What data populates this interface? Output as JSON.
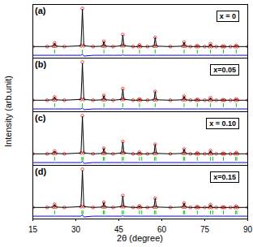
{
  "chart_data": {
    "type": "line",
    "x_label": "2θ (degree)",
    "y_label": "Intensity (arb.unit)",
    "xlim": [
      15,
      90
    ],
    "xticks": [
      15,
      30,
      45,
      60,
      75,
      90
    ],
    "tick_labels": "x",
    "panels": [
      {
        "label": "(a)",
        "annotation": "x = 0",
        "ylim": [
          -25,
          110
        ],
        "x": [
          15,
          20,
          22.2,
          22.6,
          23.0,
          26,
          31.8,
          32.3,
          32.8,
          36,
          39.4,
          39.8,
          40.2,
          43,
          46.0,
          46.4,
          46.8,
          50,
          51.8,
          52.2,
          52.6,
          55,
          57.3,
          57.7,
          58.1,
          63,
          67.4,
          67.8,
          68.2,
          70,
          72.0,
          72.4,
          72.8,
          75,
          76.6,
          77.0,
          77.4,
          79,
          81.1,
          81.5,
          81.9,
          84,
          85.6,
          86.0,
          86.4,
          90
        ],
        "series": [
          {
            "type": "scatter",
            "marker": "circle",
            "color": "#e8231f",
            "values": [
              4,
              4,
              5,
              13,
              5,
              4,
              6,
              100,
              6,
              4,
              5,
              17,
              5,
              4,
              6,
              34,
              6,
              4,
              4,
              8,
              4,
              4,
              5,
              27,
              5,
              4,
              5,
              15,
              5,
              4,
              4,
              6,
              4,
              4,
              4,
              11,
              4,
              4,
              4,
              5,
              4,
              4,
              4,
              7,
              4,
              4
            ]
          },
          {
            "type": "line",
            "color": "#000000",
            "values": [
              4,
              4,
              5,
              13,
              5,
              4,
              6,
              98,
              6,
              4,
              5,
              17,
              5,
              4,
              6,
              33,
              6,
              4,
              4,
              8,
              4,
              4,
              5,
              27,
              5,
              4,
              5,
              15,
              5,
              4,
              4,
              6,
              4,
              4,
              4,
              11,
              4,
              4,
              4,
              5,
              4,
              4,
              4,
              7,
              4,
              4
            ]
          },
          {
            "type": "line",
            "color": "#0000ff",
            "values": [
              -18,
              -18,
              -18,
              -18,
              -18,
              -18,
              -18,
              -15,
              -20,
              -18,
              -18,
              -18,
              -18,
              -18,
              -18,
              -17,
              -18,
              -18,
              -18,
              -18,
              -18,
              -18,
              -18,
              -18,
              -18,
              -18,
              -18,
              -18,
              -18,
              -18,
              -18,
              -18,
              -18,
              -18,
              -18,
              -18,
              -18,
              -18,
              -18,
              -18,
              -18,
              -18,
              -18,
              -18,
              -18,
              -18
            ]
          },
          {
            "type": "tick",
            "color": "#00cc00",
            "positions": [
              22.6,
              32.3,
              39.8,
              46.4,
              52.2,
              57.7,
              67.8,
              72.4,
              77.0,
              81.5,
              86.0
            ]
          }
        ]
      },
      {
        "label": "(b)",
        "annotation": "x=0.05",
        "ylim": [
          -25,
          110
        ],
        "x": [
          15,
          20,
          22.2,
          22.6,
          23.0,
          26,
          31.8,
          32.3,
          32.8,
          36,
          39.4,
          39.8,
          40.2,
          43,
          46.0,
          46.4,
          46.8,
          50,
          51.8,
          52.2,
          52.6,
          55,
          57.3,
          57.7,
          58.1,
          63,
          67.4,
          67.8,
          68.2,
          70,
          72.0,
          72.4,
          72.8,
          75,
          76.6,
          77.0,
          77.4,
          79,
          81.1,
          81.5,
          81.9,
          84,
          85.6,
          86.0,
          86.4,
          90
        ],
        "series": [
          {
            "type": "scatter",
            "marker": "circle",
            "color": "#e8231f",
            "values": [
              4,
              4,
              5,
              12,
              5,
              4,
              6,
              100,
              6,
              4,
              5,
              16,
              5,
              4,
              6,
              33,
              6,
              4,
              4,
              7,
              4,
              4,
              5,
              26,
              5,
              4,
              5,
              14,
              5,
              4,
              4,
              6,
              4,
              4,
              4,
              10,
              4,
              4,
              4,
              5,
              4,
              4,
              4,
              7,
              4,
              4
            ]
          },
          {
            "type": "line",
            "color": "#000000",
            "values": [
              4,
              4,
              5,
              12,
              5,
              4,
              6,
              97,
              6,
              4,
              5,
              16,
              5,
              4,
              6,
              32,
              6,
              4,
              4,
              7,
              4,
              4,
              5,
              26,
              5,
              4,
              5,
              14,
              5,
              4,
              4,
              6,
              4,
              4,
              4,
              10,
              4,
              4,
              4,
              5,
              4,
              4,
              4,
              7,
              4,
              4
            ]
          },
          {
            "type": "line",
            "color": "#0000ff",
            "values": [
              -18,
              -18,
              -18,
              -18,
              -18,
              -18,
              -18,
              -15,
              -20,
              -18,
              -18,
              -18,
              -18,
              -18,
              -18,
              -17,
              -18,
              -18,
              -18,
              -18,
              -18,
              -18,
              -18,
              -18,
              -18,
              -18,
              -18,
              -18,
              -18,
              -18,
              -18,
              -18,
              -18,
              -18,
              -18,
              -18,
              -18,
              -18,
              -18,
              -18,
              -18,
              -18,
              -18,
              -18,
              -18,
              -18
            ]
          },
          {
            "type": "tick",
            "color": "#00cc00",
            "positions": [
              22.6,
              32.3,
              39.8,
              46.4,
              52.2,
              57.7,
              67.8,
              72.4,
              77.0,
              81.5,
              86.0
            ]
          }
        ]
      },
      {
        "label": "(c)",
        "annotation": "x = 0.10",
        "ylim": [
          -25,
          110
        ],
        "x": [
          15,
          20,
          22.2,
          22.6,
          23.0,
          26,
          31.8,
          32.3,
          32.8,
          36,
          39.4,
          39.8,
          40.2,
          43,
          46.0,
          46.4,
          46.8,
          50,
          51.8,
          52.2,
          52.6,
          55,
          57.3,
          57.7,
          58.1,
          63,
          67.4,
          67.8,
          68.2,
          70,
          72.0,
          72.4,
          72.8,
          75,
          76.6,
          77.0,
          77.4,
          79,
          81.1,
          81.5,
          81.9,
          84,
          85.6,
          86.0,
          86.4,
          90
        ],
        "series": [
          {
            "type": "scatter",
            "marker": "circle",
            "color": "#e8231f",
            "values": [
              4,
              4,
              5,
              11,
              5,
              4,
              6,
              100,
              6,
              4,
              5,
              18,
              5,
              4,
              6,
              35,
              6,
              4,
              4,
              8,
              4,
              4,
              5,
              28,
              5,
              4,
              5,
              16,
              5,
              4,
              4,
              6,
              4,
              4,
              4,
              12,
              4,
              4,
              4,
              5,
              4,
              4,
              4,
              7,
              4,
              4
            ]
          },
          {
            "type": "line",
            "color": "#000000",
            "values": [
              4,
              4,
              5,
              11,
              5,
              4,
              6,
              98,
              6,
              4,
              5,
              18,
              5,
              4,
              6,
              34,
              6,
              4,
              4,
              8,
              4,
              4,
              5,
              28,
              5,
              4,
              5,
              16,
              5,
              4,
              4,
              6,
              4,
              4,
              4,
              12,
              4,
              4,
              4,
              5,
              4,
              4,
              4,
              7,
              4,
              4
            ]
          },
          {
            "type": "line",
            "color": "#0000ff",
            "values": [
              -18,
              -18,
              -18,
              -18,
              -18,
              -18,
              -18,
              -15,
              -20,
              -18,
              -18,
              -18,
              -18,
              -18,
              -18,
              -17,
              -18,
              -18,
              -18,
              -18,
              -18,
              -18,
              -18,
              -18,
              -18,
              -18,
              -18,
              -18,
              -18,
              -18,
              -18,
              -18,
              -18,
              -18,
              -18,
              -18,
              -18,
              -18,
              -18,
              -18,
              -18,
              -18,
              -18,
              -18,
              -18,
              -18
            ]
          },
          {
            "type": "tick",
            "color": "#00cc00",
            "positions": [
              22.6,
              32.1,
              32.5,
              39.6,
              40.0,
              46.2,
              46.6,
              52.2,
              53.0,
              57.5,
              57.9,
              67.6,
              68.0,
              72.4,
              77.0,
              77.8,
              81.5,
              85.8,
              86.2
            ]
          }
        ]
      },
      {
        "label": "(d)",
        "annotation": "x=0.15",
        "ylim": [
          -25,
          110
        ],
        "x": [
          15,
          20,
          22.2,
          22.6,
          23.0,
          26,
          31.8,
          32.3,
          32.8,
          36,
          39.4,
          39.8,
          40.2,
          43,
          46.0,
          46.4,
          46.8,
          50,
          51.8,
          52.2,
          52.6,
          55,
          57.3,
          57.7,
          58.1,
          63,
          67.4,
          67.8,
          68.2,
          70,
          72.0,
          72.4,
          72.8,
          75,
          76.6,
          77.0,
          77.4,
          79,
          81.1,
          81.5,
          81.9,
          84,
          85.6,
          86.0,
          86.4,
          90
        ],
        "series": [
          {
            "type": "scatter",
            "marker": "circle",
            "color": "#e8231f",
            "values": [
              4,
              4,
              5,
              12,
              5,
              4,
              6,
              100,
              6,
              4,
              5,
              17,
              5,
              4,
              6,
              34,
              6,
              4,
              4,
              8,
              4,
              4,
              5,
              27,
              5,
              4,
              5,
              15,
              5,
              4,
              4,
              6,
              4,
              4,
              4,
              11,
              4,
              4,
              4,
              5,
              4,
              4,
              4,
              7,
              4,
              4
            ]
          },
          {
            "type": "line",
            "color": "#000000",
            "values": [
              4,
              4,
              5,
              12,
              5,
              4,
              6,
              97,
              6,
              4,
              5,
              17,
              5,
              4,
              6,
              33,
              6,
              4,
              4,
              8,
              4,
              4,
              5,
              27,
              5,
              4,
              5,
              15,
              5,
              4,
              4,
              6,
              4,
              4,
              4,
              11,
              4,
              4,
              4,
              5,
              4,
              4,
              4,
              7,
              4,
              4
            ]
          },
          {
            "type": "line",
            "color": "#0000ff",
            "values": [
              -18,
              -18,
              -18,
              -18,
              -18,
              -18,
              -18,
              -15,
              -20,
              -18,
              -18,
              -18,
              -18,
              -18,
              -18,
              -17,
              -18,
              -18,
              -18,
              -18,
              -18,
              -18,
              -18,
              -18,
              -18,
              -18,
              -18,
              -18,
              -18,
              -18,
              -18,
              -18,
              -18,
              -18,
              -18,
              -18,
              -18,
              -18,
              -18,
              -18,
              -18,
              -18,
              -18,
              -18,
              -18,
              -18
            ]
          },
          {
            "type": "tick",
            "color": "#00cc00",
            "positions": [
              22.6,
              32.1,
              32.5,
              39.6,
              40.0,
              46.2,
              46.6,
              52.2,
              53.0,
              57.5,
              57.9,
              67.6,
              68.0,
              72.4,
              77.0,
              77.8,
              81.5,
              85.8,
              86.2
            ]
          }
        ]
      }
    ]
  }
}
